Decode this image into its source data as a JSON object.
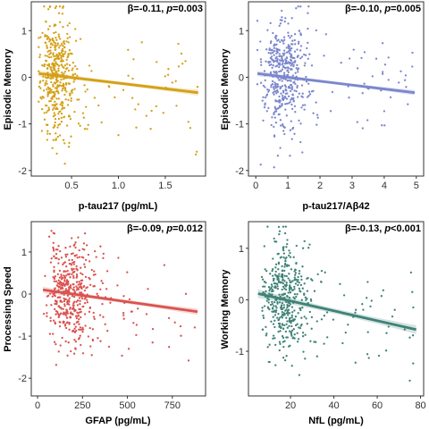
{
  "chart_data": [
    {
      "id": "a",
      "type": "scatter",
      "xlabel": "p-tau217 (pg/mL)",
      "ylabel": "Episodic Memory",
      "annotation": {
        "prefix": "β=-0.11, ",
        "p_symbol": "p",
        "p_text": "=0.003"
      },
      "color": "#D4A017",
      "xlim": [
        0.08,
        1.92
      ],
      "ylim": [
        -2.1,
        1.6
      ],
      "xticks": [
        0.5,
        1.0,
        1.5
      ],
      "xtick_labels": [
        "0.5",
        "1.0",
        "1.5"
      ],
      "yticks": [
        -2,
        -1,
        0,
        1
      ],
      "ytick_labels": [
        "-2",
        "-1",
        "0",
        "1"
      ],
      "fit": {
        "x": [
          0.15,
          1.85
        ],
        "y": [
          0.08,
          -0.33
        ],
        "ci": 0.07
      },
      "cloud": {
        "x_center": 0.3,
        "x_spread": 0.12,
        "x_min": 0.15,
        "x_max": 1.85,
        "y_sd": 0.62,
        "n": 480,
        "seed": 11
      }
    },
    {
      "id": "b",
      "type": "scatter",
      "xlabel": "p-tau217/Aβ42",
      "ylabel": "Episodic Memory",
      "annotation": {
        "prefix": "β=-0.10, ",
        "p_symbol": "p",
        "p_text": "=0.005"
      },
      "color": "#7B86CC",
      "xlim": [
        -0.2,
        5.2
      ],
      "ylim": [
        -2.1,
        1.6
      ],
      "xticks": [
        0,
        1,
        2,
        3,
        4,
        5
      ],
      "xtick_labels": [
        "0",
        "1",
        "2",
        "3",
        "4",
        "5"
      ],
      "yticks": [
        -2,
        -1,
        0,
        1
      ],
      "ytick_labels": [
        "-2",
        "-1",
        "0",
        "1"
      ],
      "fit": {
        "x": [
          0.05,
          4.95
        ],
        "y": [
          0.08,
          -0.33
        ],
        "ci": 0.06
      },
      "cloud": {
        "x_center": 0.75,
        "x_spread": 0.45,
        "x_min": 0.05,
        "x_max": 4.9,
        "y_sd": 0.62,
        "n": 480,
        "seed": 23
      }
    },
    {
      "id": "c",
      "type": "scatter",
      "xlabel": "GFAP (pg/mL)",
      "ylabel": "Processing Speed",
      "annotation": {
        "prefix": "β=-0.09, ",
        "p_symbol": "p",
        "p_text": "=0.012"
      },
      "color": "#D9534F",
      "xlim": [
        -30,
        930
      ],
      "ylim": [
        -2.4,
        1.7
      ],
      "xticks": [
        0,
        250,
        500,
        750
      ],
      "xtick_labels": [
        "0",
        "250",
        "500",
        "750"
      ],
      "yticks": [
        -2,
        -1,
        0,
        1
      ],
      "ytick_labels": [
        "-2",
        "-1",
        "0",
        "1"
      ],
      "fit": {
        "x": [
          30,
          890
        ],
        "y": [
          0.1,
          -0.42
        ],
        "ci": 0.08
      },
      "cloud": {
        "x_center": 150,
        "x_spread": 80,
        "x_min": 35,
        "x_max": 880,
        "y_sd": 0.62,
        "n": 480,
        "seed": 37
      }
    },
    {
      "id": "d",
      "type": "scatter",
      "xlabel": "NfL (pg/mL)",
      "ylabel": "Working Memory",
      "annotation": {
        "prefix": "β=-0.13, ",
        "p_symbol": "p",
        "p_text": "<0.001"
      },
      "color": "#3F8278",
      "xlim": [
        1,
        81
      ],
      "ylim": [
        -1.85,
        1.5
      ],
      "xticks": [
        20,
        40,
        60,
        80
      ],
      "xtick_labels": [
        "20",
        "40",
        "60",
        "80"
      ],
      "yticks": [
        -1,
        0,
        1
      ],
      "ytick_labels": [
        "-1",
        "0",
        "1"
      ],
      "fit": {
        "x": [
          5,
          78
        ],
        "y": [
          0.12,
          -0.58
        ],
        "ci": 0.09
      },
      "cloud": {
        "x_center": 15,
        "x_spread": 7,
        "x_min": 5,
        "x_max": 78,
        "y_sd": 0.55,
        "n": 480,
        "seed": 51
      }
    }
  ]
}
